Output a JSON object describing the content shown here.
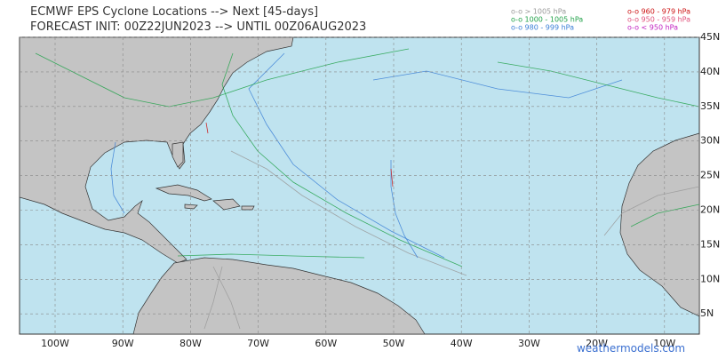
{
  "title": {
    "line1": "ECMWF EPS Cyclone Locations --> Next [45-days]",
    "line2": "FORECAST INIT: 00Z22JUN2023 --> UNTIL 00Z06AUG2023"
  },
  "legend": [
    {
      "label": "o-o > 1005 hPa",
      "color": "#9a9a9a"
    },
    {
      "label": "o-o 1000 - 1005 hPa",
      "color": "#22a24a"
    },
    {
      "label": "o-o 980 - 999 hPa",
      "color": "#3a7fd6"
    },
    {
      "label": "o-o 960 - 979 hPa",
      "color": "#cc1111"
    },
    {
      "label": "o-o 950 - 959 hPa",
      "color": "#e0507a"
    },
    {
      "label": "o-o < 950 hPa",
      "color": "#c020c0"
    }
  ],
  "axes": {
    "longitude": [
      "100W",
      "90W",
      "80W",
      "70W",
      "60W",
      "50W",
      "40W",
      "30W",
      "20W",
      "10W"
    ],
    "latitude": [
      "45N",
      "40N",
      "35N",
      "30N",
      "25N",
      "20N",
      "15N",
      "10N",
      "5N"
    ]
  },
  "credit": "weathermodels.com"
}
